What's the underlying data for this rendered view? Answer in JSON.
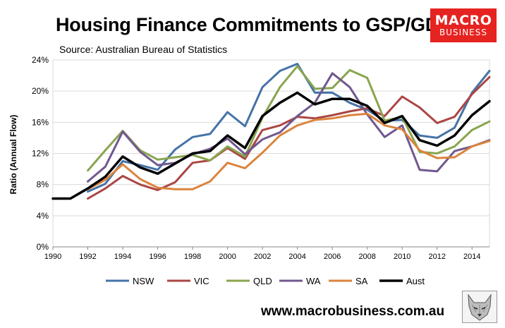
{
  "header": {
    "title": "Housing Finance Commitments to GSP/GDP",
    "source": "Source: Australian Bureau of Statistics"
  },
  "logo": {
    "line1": "MACRO",
    "line2": "BUSINESS",
    "color": "#e52320"
  },
  "footer": {
    "website": "www.macrobusiness.com.au"
  },
  "chart_data": {
    "type": "line",
    "ylabel": "Ratio (Annual Flow)",
    "xlabel": "",
    "xlim": [
      1990,
      2015
    ],
    "ylim": [
      0,
      24
    ],
    "grid": true,
    "legend_position": "bottom",
    "x_ticks": [
      "1990",
      "1992",
      "1994",
      "1996",
      "1998",
      "2000",
      "2002",
      "2004",
      "2006",
      "2008",
      "2010",
      "2012",
      "2014"
    ],
    "y_ticks": [
      "0%",
      "4%",
      "8%",
      "12%",
      "16%",
      "20%",
      "24%"
    ],
    "x": [
      1990,
      1991,
      1992,
      1993,
      1994,
      1995,
      1996,
      1997,
      1998,
      1999,
      2000,
      2001,
      2002,
      2003,
      2004,
      2005,
      2006,
      2007,
      2008,
      2009,
      2010,
      2011,
      2012,
      2013,
      2014,
      2015
    ],
    "series": [
      {
        "name": "NSW",
        "color": "#4573a7",
        "values": [
          null,
          null,
          7.1,
          8.1,
          11.0,
          10.5,
          9.9,
          12.5,
          14.1,
          14.5,
          17.3,
          15.5,
          20.5,
          22.6,
          23.5,
          19.8,
          19.8,
          18.5,
          17.6,
          16.2,
          16.3,
          14.3,
          14.0,
          15.3,
          19.8,
          22.6
        ]
      },
      {
        "name": "VIC",
        "color": "#aa4643",
        "values": [
          null,
          null,
          6.2,
          7.5,
          9.1,
          8.0,
          7.3,
          8.3,
          10.8,
          11.1,
          12.7,
          11.3,
          15.0,
          15.6,
          16.7,
          16.5,
          16.9,
          17.4,
          17.8,
          16.8,
          19.3,
          17.9,
          15.9,
          16.7,
          19.6,
          21.8
        ]
      },
      {
        "name": "QLD",
        "color": "#89a54e",
        "values": [
          null,
          null,
          9.8,
          12.4,
          14.9,
          12.4,
          11.2,
          11.5,
          11.8,
          11.1,
          12.9,
          11.6,
          16.6,
          20.5,
          23.2,
          20.3,
          20.4,
          22.7,
          21.7,
          16.2,
          16.7,
          12.2,
          12.0,
          12.9,
          15.0,
          16.1
        ]
      },
      {
        "name": "WA",
        "color": "#71588f",
        "values": [
          null,
          null,
          8.4,
          10.3,
          14.8,
          12.2,
          10.5,
          10.8,
          11.9,
          12.6,
          13.9,
          11.9,
          13.8,
          14.7,
          16.8,
          18.5,
          22.3,
          20.5,
          17.0,
          14.1,
          15.6,
          9.9,
          9.7,
          12.3,
          12.9,
          13.7
        ]
      },
      {
        "name": "SA",
        "color": "#db843d",
        "values": [
          null,
          null,
          7.4,
          8.6,
          10.6,
          8.7,
          7.6,
          7.4,
          7.4,
          8.4,
          10.8,
          10.1,
          12.1,
          14.3,
          15.6,
          16.3,
          16.5,
          16.9,
          17.1,
          15.6,
          15.1,
          12.4,
          11.4,
          11.5,
          12.9,
          13.6
        ]
      },
      {
        "name": "Aust",
        "color": "#000000",
        "values": [
          6.2,
          6.2,
          7.5,
          9.0,
          11.6,
          10.2,
          9.4,
          10.7,
          12.0,
          12.3,
          14.3,
          12.7,
          16.8,
          18.5,
          19.8,
          18.3,
          19.0,
          19.0,
          18.1,
          15.9,
          16.8,
          13.7,
          13.0,
          14.3,
          16.9,
          18.7
        ]
      }
    ]
  }
}
